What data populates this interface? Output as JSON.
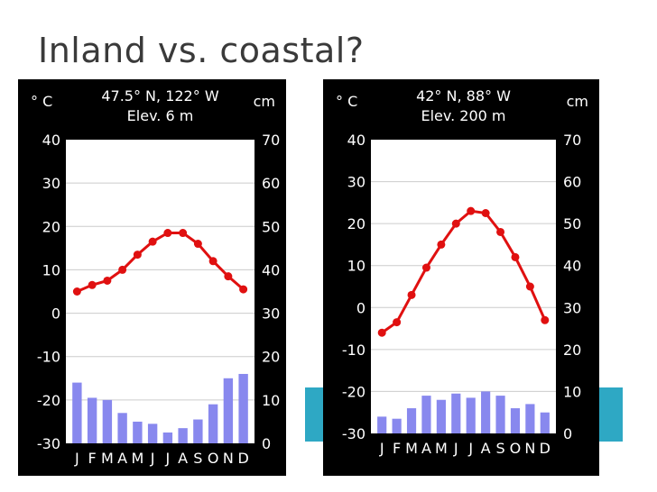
{
  "slide": {
    "title": "Inland vs. coastal?",
    "accent_color": "#2ea8c4"
  },
  "chart_data": [
    {
      "type": "climograph",
      "location_label": "47.5° N, 122° W",
      "elevation_label": "Elev. 6 m",
      "left_unit": "° C",
      "right_unit": "cm",
      "months": [
        "J",
        "F",
        "M",
        "A",
        "M",
        "J",
        "J",
        "A",
        "S",
        "O",
        "N",
        "D"
      ],
      "temperature_c": [
        5,
        6.5,
        7.5,
        10,
        13.5,
        16.5,
        18.5,
        18.5,
        16,
        12,
        8.5,
        5.5
      ],
      "precipitation_cm": [
        14,
        10.5,
        10,
        7,
        5,
        4.5,
        2.5,
        3.5,
        5.5,
        9,
        15,
        16
      ],
      "temp_range": [
        -30,
        40
      ],
      "precip_range": [
        0,
        70
      ],
      "temp_ticks": [
        "40",
        "30",
        "20",
        "10",
        "0",
        "-10",
        "-20",
        "-30"
      ],
      "precip_ticks": [
        "70",
        "60",
        "50",
        "40",
        "30",
        "20",
        "10",
        "0"
      ],
      "temp_color": "#e01010",
      "precip_color": "#8888ee"
    },
    {
      "type": "climograph",
      "location_label": "42° N, 88° W",
      "elevation_label": "Elev. 200 m",
      "left_unit": "° C",
      "right_unit": "cm",
      "months": [
        "J",
        "F",
        "M",
        "A",
        "M",
        "J",
        "J",
        "A",
        "S",
        "O",
        "N",
        "D"
      ],
      "temperature_c": [
        -6,
        -3.5,
        3,
        9.5,
        15,
        20,
        23,
        22.5,
        18,
        12,
        5,
        -3
      ],
      "precipitation_cm": [
        4,
        3.5,
        6,
        9,
        8,
        9.5,
        8.5,
        10,
        9,
        6,
        7,
        5
      ],
      "temp_range": [
        -30,
        40
      ],
      "precip_range": [
        0,
        70
      ],
      "temp_ticks": [
        "40",
        "30",
        "20",
        "10",
        "0",
        "-10",
        "-20",
        "-30"
      ],
      "precip_ticks": [
        "70",
        "60",
        "50",
        "40",
        "30",
        "20",
        "10",
        "0"
      ],
      "temp_color": "#e01010",
      "precip_color": "#8888ee"
    }
  ]
}
